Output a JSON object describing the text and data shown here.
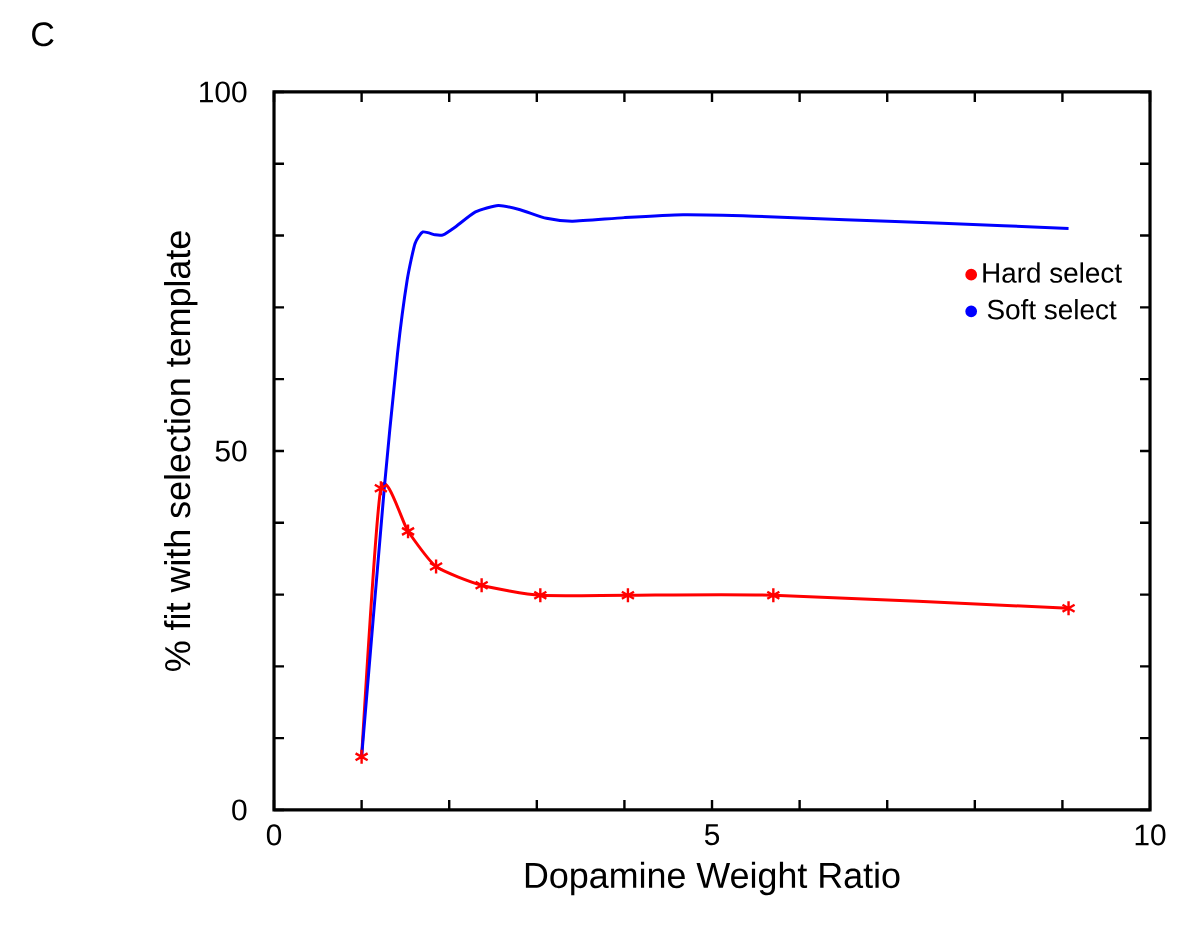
{
  "chart_data": {
    "type": "line",
    "xlabel": "Dopamine Weight Ratio",
    "ylabel": "% fit with selection template",
    "annotations": [
      "C"
    ],
    "xlim": [
      0,
      10
    ],
    "ylim": [
      0,
      100
    ],
    "xticks": [
      0,
      {
        "value": 1,
        "label": null
      },
      {
        "value": 2,
        "label": null
      },
      {
        "value": 3,
        "label": null
      },
      {
        "value": 4,
        "label": null
      },
      5,
      {
        "value": 6,
        "label": null
      },
      {
        "value": 7,
        "label": null
      },
      {
        "value": 8,
        "label": null
      },
      {
        "value": 9,
        "label": null
      },
      10
    ],
    "yticks": [
      0,
      {
        "value": 10,
        "label": null
      },
      {
        "value": 20,
        "label": null
      },
      {
        "value": 30,
        "label": null
      },
      {
        "value": 40,
        "label": null
      },
      50,
      {
        "value": 60,
        "label": null
      },
      {
        "value": 70,
        "label": null
      },
      {
        "value": 80,
        "label": null
      },
      {
        "value": 90,
        "label": null
      },
      100
    ],
    "grid": false,
    "legend": "right",
    "series": [
      {
        "name": "Hard select",
        "color": "#ff0000",
        "marker": "cross",
        "x": [
          1.0,
          1.22,
          1.53,
          1.85,
          2.37,
          3.04,
          4.04,
          5.7,
          9.07
        ],
        "values": [
          7.4,
          44.8,
          38.8,
          33.9,
          31.3,
          29.9,
          29.9,
          29.9,
          28.1
        ]
      },
      {
        "name": "Soft select",
        "color": "#0000ff",
        "marker": "none",
        "x": [
          1.0,
          1.26,
          1.41,
          1.52,
          1.61,
          1.7,
          1.84,
          1.93,
          2.07,
          2.3,
          2.56,
          2.81,
          3.11,
          3.41,
          4.0,
          4.67,
          5.48,
          6.52,
          7.63,
          9.07
        ],
        "values": [
          7.4,
          45.0,
          63.6,
          73.8,
          78.9,
          80.5,
          80.1,
          80.1,
          81.2,
          83.3,
          84.2,
          83.6,
          82.4,
          82.0,
          82.5,
          82.9,
          82.7,
          82.2,
          81.7,
          81.0
        ]
      }
    ]
  }
}
